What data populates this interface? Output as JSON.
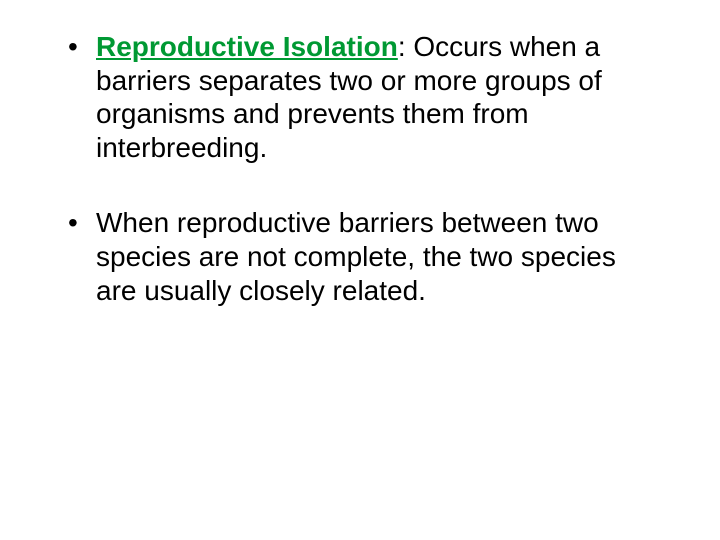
{
  "bullets": [
    {
      "term": "Reproductive Isolation",
      "term_color": "#009933",
      "colon": ":",
      "rest": "  Occurs when a barriers separates two or more groups of organisms and prevents them from interbreeding."
    },
    {
      "text": "When reproductive barriers between two species are not complete, the two species are usually closely related."
    }
  ],
  "style": {
    "font_size_pt": 28,
    "text_color": "#000000",
    "term_color": "#009933",
    "background": "#ffffff"
  }
}
